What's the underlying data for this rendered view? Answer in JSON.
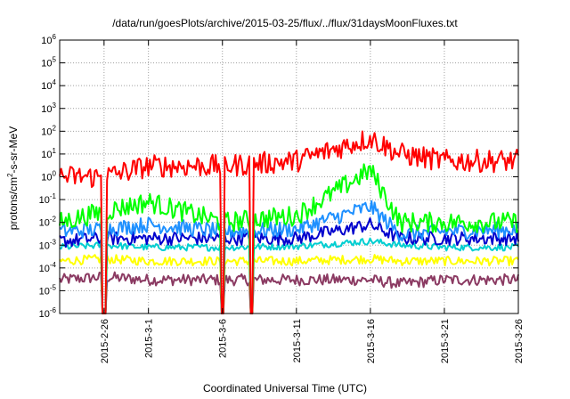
{
  "chart_data": {
    "type": "line",
    "title": "/data/run/goesPlots/archive/2015-03-25/flux/../flux/31daysMoonFluxes.txt",
    "xlabel": "Coordinated Universal Time (UTC)",
    "ylabel_parts": {
      "pre": "protons/cm",
      "sup": "2",
      "post": "-s-sr-MeV"
    },
    "x_range": [
      "2015-02-23",
      "2015-03-26"
    ],
    "x_ticks": [
      "2015-2-26",
      "2015-3-1",
      "2015-3-6",
      "2015-3-11",
      "2015-3-16",
      "2015-3-21",
      "2015-3-26"
    ],
    "y_scale": "log",
    "ylim": [
      1e-06,
      1000000.0
    ],
    "y_ticks": [
      {
        "base": "10",
        "exp": "-6"
      },
      {
        "base": "10",
        "exp": "-5"
      },
      {
        "base": "10",
        "exp": "-4"
      },
      {
        "base": "10",
        "exp": "-3"
      },
      {
        "base": "10",
        "exp": "-2"
      },
      {
        "base": "10",
        "exp": "-1"
      },
      {
        "base": "10",
        "exp": "0"
      },
      {
        "base": "10",
        "exp": "1"
      },
      {
        "base": "10",
        "exp": "2"
      },
      {
        "base": "10",
        "exp": "3"
      },
      {
        "base": "10",
        "exp": "4"
      },
      {
        "base": "10",
        "exp": "5"
      },
      {
        "base": "10",
        "exp": "6"
      }
    ],
    "grid": true,
    "series": [
      {
        "color": "#8b3a62",
        "x": [
          "2015-02-23",
          "2015-02-26",
          "2015-03-01",
          "2015-03-06",
          "2015-03-11",
          "2015-03-16",
          "2015-03-18",
          "2015-03-21",
          "2015-03-26"
        ],
        "values": [
          3e-05,
          4e-05,
          3e-05,
          3e-05,
          3e-05,
          3e-05,
          2e-05,
          3e-05,
          3e-05
        ]
      },
      {
        "color": "#ffff00",
        "x": [
          "2015-02-23",
          "2015-02-26",
          "2015-03-01",
          "2015-03-06",
          "2015-03-11",
          "2015-03-16",
          "2015-03-18",
          "2015-03-21",
          "2015-03-26"
        ],
        "values": [
          0.0002,
          0.00025,
          0.0002,
          0.0002,
          0.0002,
          0.00025,
          0.0002,
          0.0002,
          0.0002
        ]
      },
      {
        "color": "#00ced1",
        "x": [
          "2015-02-23",
          "2015-02-26",
          "2015-03-01",
          "2015-03-06",
          "2015-03-11",
          "2015-03-16",
          "2015-03-18",
          "2015-03-21",
          "2015-03-26"
        ],
        "values": [
          0.0008,
          0.001,
          0.0008,
          0.0008,
          0.0009,
          0.0015,
          0.001,
          0.0008,
          0.0008
        ]
      },
      {
        "color": "#0000cd",
        "x": [
          "2015-02-23",
          "2015-02-26",
          "2015-03-01",
          "2015-03-06",
          "2015-03-11",
          "2015-03-16",
          "2015-03-18",
          "2015-03-21",
          "2015-03-26"
        ],
        "values": [
          0.0015,
          0.002,
          0.002,
          0.002,
          0.002,
          0.008,
          0.002,
          0.002,
          0.002
        ]
      },
      {
        "color": "#1e90ff",
        "x": [
          "2015-02-23",
          "2015-02-26",
          "2015-03-01",
          "2015-03-06",
          "2015-03-11",
          "2015-03-16",
          "2015-03-18",
          "2015-03-21",
          "2015-03-26"
        ],
        "values": [
          0.004,
          0.005,
          0.008,
          0.004,
          0.005,
          0.05,
          0.003,
          0.004,
          0.005
        ]
      },
      {
        "color": "#00ff00",
        "x": [
          "2015-02-23",
          "2015-02-26",
          "2015-03-01",
          "2015-03-06",
          "2015-03-11",
          "2015-03-16",
          "2015-03-18",
          "2015-03-21",
          "2015-03-26"
        ],
        "values": [
          0.01,
          0.03,
          0.08,
          0.01,
          0.02,
          2,
          0.01,
          0.01,
          0.01
        ]
      },
      {
        "color": "#ff0000",
        "x": [
          "2015-02-23",
          "2015-02-26",
          "2015-03-01",
          "2015-03-06",
          "2015-03-11",
          "2015-03-16",
          "2015-03-18",
          "2015-03-21",
          "2015-03-26"
        ],
        "values": [
          1,
          1,
          3,
          3,
          5,
          50,
          10,
          5,
          5
        ]
      }
    ],
    "dropouts": [
      "2015-02-26",
      "2015-03-06",
      "2015-03-08"
    ]
  }
}
